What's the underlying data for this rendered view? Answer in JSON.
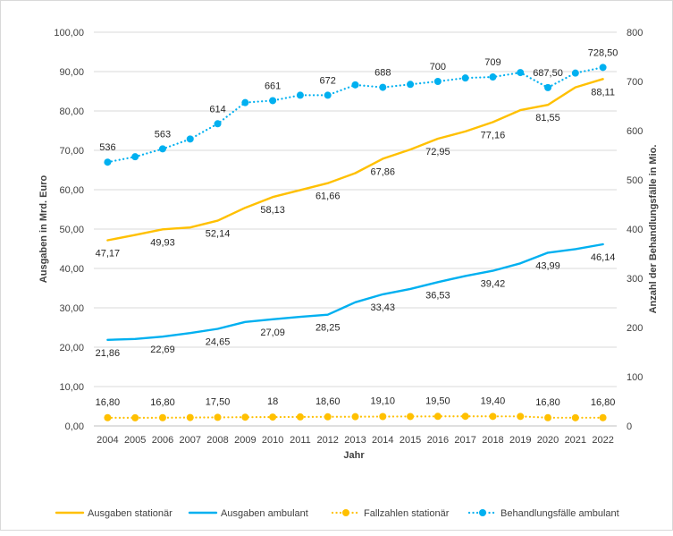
{
  "chart_data": {
    "type": "line",
    "xlabel": "Jahr",
    "ylabel_left": "Ausgaben in Mrd. Euro",
    "ylabel_right": "Anzahl der Behandlungsfälle in Mio.",
    "ylim_left": [
      0,
      100
    ],
    "ylim_right": [
      0,
      800
    ],
    "grid": true,
    "legend_position": "bottom",
    "x": [
      "2004",
      "2005",
      "2006",
      "2007",
      "2008",
      "2009",
      "2010",
      "2011",
      "2012",
      "2013",
      "2014",
      "2015",
      "2016",
      "2017",
      "2018",
      "2019",
      "2020",
      "2021",
      "2022"
    ],
    "y_left_ticks": [
      "0,00",
      "10,00",
      "20,00",
      "30,00",
      "40,00",
      "50,00",
      "60,00",
      "70,00",
      "80,00",
      "90,00",
      "100,00"
    ],
    "y_right_ticks": [
      "0",
      "100",
      "200",
      "300",
      "400",
      "500",
      "600",
      "700",
      "800"
    ],
    "series": [
      {
        "name": "Ausgaben stationär",
        "axis": "left",
        "style": "solid",
        "color": "#FFC000",
        "values": [
          47.17,
          48.5,
          49.93,
          50.4,
          52.14,
          55.4,
          58.13,
          59.9,
          61.66,
          64.2,
          67.86,
          70.2,
          72.95,
          74.8,
          77.16,
          80.2,
          81.55,
          86.0,
          88.11
        ],
        "labels": [
          "47,17",
          "",
          "49,93",
          "",
          "52,14",
          "",
          "58,13",
          "",
          "61,66",
          "",
          "67,86",
          "",
          "72,95",
          "",
          "77,16",
          "",
          "81,55",
          "",
          "88,11"
        ]
      },
      {
        "name": "Ausgaben ambulant",
        "axis": "left",
        "style": "solid",
        "color": "#00B0F0",
        "values": [
          21.86,
          22.1,
          22.69,
          23.6,
          24.65,
          26.4,
          27.09,
          27.7,
          28.25,
          31.4,
          33.43,
          34.8,
          36.53,
          38.1,
          39.42,
          41.3,
          43.99,
          44.9,
          46.14
        ],
        "labels": [
          "21,86",
          "",
          "22,69",
          "",
          "24,65",
          "",
          "27,09",
          "",
          "28,25",
          "",
          "33,43",
          "",
          "36,53",
          "",
          "39,42",
          "",
          "43,99",
          "",
          "46,14"
        ]
      },
      {
        "name": "Fallzahlen stationär",
        "axis": "right",
        "style": "dotted",
        "color": "#FFC000",
        "values": [
          16.8,
          16.6,
          16.8,
          17.1,
          17.5,
          17.8,
          18,
          18.3,
          18.6,
          18.8,
          19.1,
          19.2,
          19.5,
          19.6,
          19.4,
          19.4,
          16.8,
          16.7,
          16.8
        ],
        "labels": [
          "16,80",
          "",
          "16,80",
          "",
          "17,50",
          "",
          "18",
          "",
          "18,60",
          "",
          "19,10",
          "",
          "19,50",
          "",
          "19,40",
          "",
          "16,80",
          "",
          "16,80"
        ]
      },
      {
        "name": "Behandlungsfälle ambulant",
        "axis": "right",
        "style": "dotted",
        "color": "#00B0F0",
        "values": [
          536,
          547,
          563,
          583,
          614,
          657,
          661,
          672,
          672,
          693,
          688,
          694,
          700,
          707,
          709,
          718,
          687.5,
          717,
          728.5
        ],
        "labels": [
          "536",
          "",
          "563",
          "",
          "614",
          "",
          "661",
          "",
          "672",
          "",
          "688",
          "",
          "700",
          "",
          "709",
          "",
          "687,50",
          "",
          "728,50"
        ]
      }
    ]
  }
}
